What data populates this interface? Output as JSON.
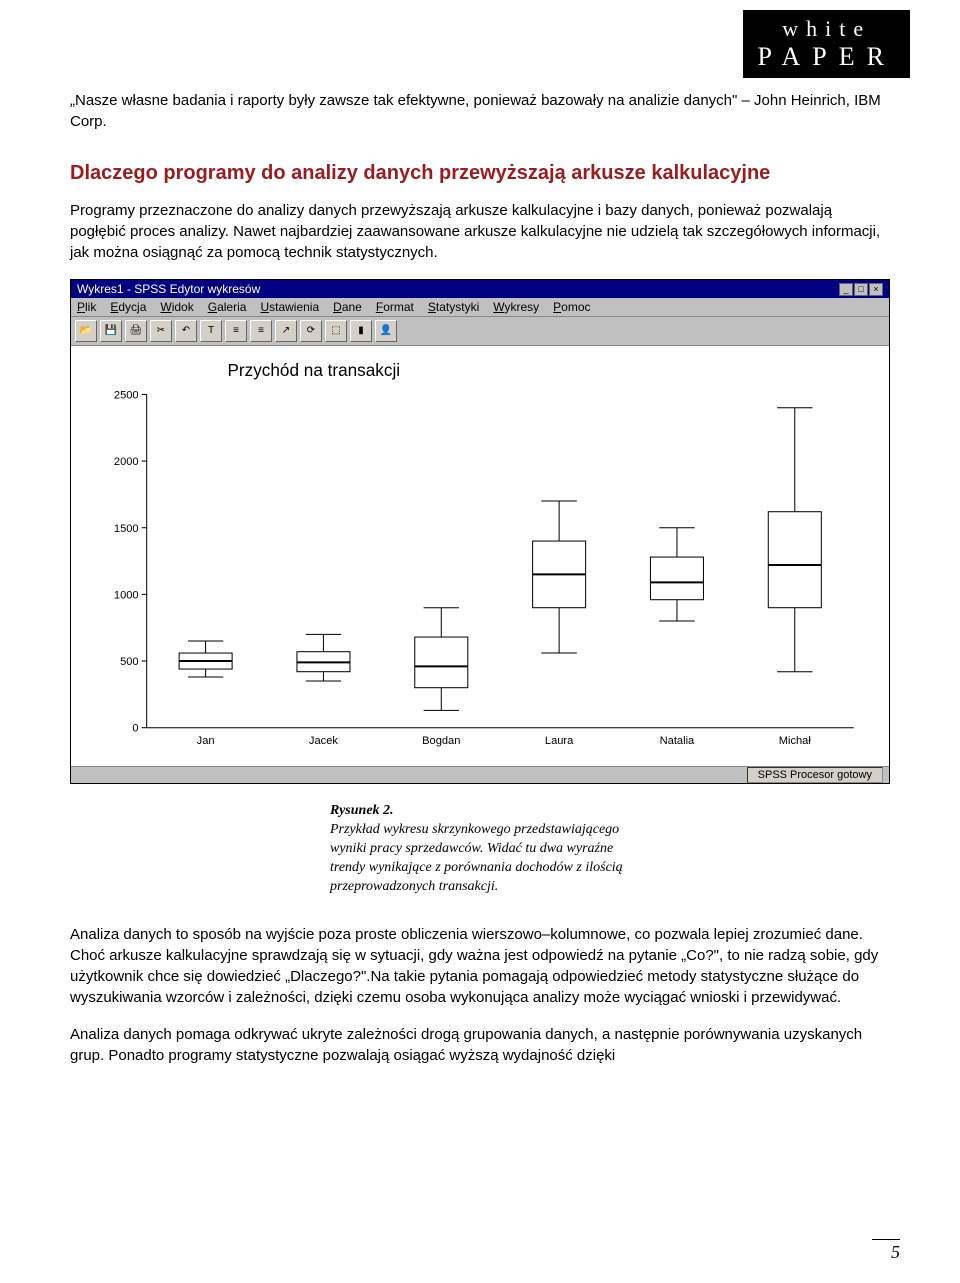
{
  "logo": {
    "line1": "white",
    "line2": "PAPER"
  },
  "quote": "„Nasze własne badania i raporty były zawsze tak efektywne, ponieważ bazowały na analizie danych\" – John Heinrich, IBM Corp.",
  "section_title_color": "#9b1b1e",
  "section_title": "Dlaczego programy do analizy danych przewyższają arkusze kalkulacyjne",
  "para1": "Programy przeznaczone do analizy danych przewyższają arkusze kalkulacyjne i bazy danych, ponieważ pozwalają pogłębić proces analizy. Nawet najbardziej zaawansowane arkusze kalkulacyjne nie udzielą tak szczegółowych informacji, jak można osiągnąć za pomocą technik statystycznych.",
  "window": {
    "title": "Wykres1 - SPSS Edytor wykresów",
    "menu": [
      "Plik",
      "Edycja",
      "Widok",
      "Galeria",
      "Ustawienia",
      "Dane",
      "Format",
      "Statystyki",
      "Wykresy",
      "Pomoc"
    ],
    "toolbar_icons": [
      "open-icon",
      "save-icon",
      "print-icon",
      "cut-icon",
      "undo-icon",
      "text-icon",
      "align-icon",
      "align-icon",
      "arrow-icon",
      "spin-icon",
      "select-icon",
      "bar-icon",
      "person-icon"
    ],
    "status": "SPSS Procesor gotowy"
  },
  "chart": {
    "type": "boxplot",
    "title": "Przychód na transakcji",
    "title_fontsize": 17,
    "ylim": [
      0,
      2500
    ],
    "ytick_step": 500,
    "yticks": [
      0,
      500,
      1000,
      1500,
      2000,
      2500
    ],
    "categories": [
      "Jan",
      "Jacek",
      "Bogdan",
      "Laura",
      "Natalia",
      "Michał"
    ],
    "boxes": [
      {
        "min": 380,
        "q1": 440,
        "median": 500,
        "q3": 560,
        "max": 650
      },
      {
        "min": 350,
        "q1": 420,
        "median": 490,
        "q3": 570,
        "max": 700
      },
      {
        "min": 130,
        "q1": 300,
        "median": 460,
        "q3": 680,
        "max": 900
      },
      {
        "min": 560,
        "q1": 900,
        "median": 1150,
        "q3": 1400,
        "max": 1700
      },
      {
        "min": 800,
        "q1": 960,
        "median": 1090,
        "q3": 1280,
        "max": 1500
      },
      {
        "min": 420,
        "q1": 900,
        "median": 1220,
        "q3": 1620,
        "max": 2400
      }
    ],
    "box_fill": "#ffffff",
    "box_stroke": "#000000",
    "background_color": "#ffffff",
    "label_fontsize": 11
  },
  "caption_title": "Rysunek 2.",
  "caption_body": "Przykład wykresu skrzynkowego przedstawiającego wyniki pracy sprzedawców. Widać tu dwa wyraźne trendy wynikające z porównania dochodów z ilością przeprowadzonych transakcji.",
  "para2": "Analiza danych to sposób na wyjście poza proste obliczenia wierszowo–kolumnowe, co pozwala lepiej zrozumieć dane. Choć arkusze kalkulacyjne sprawdzają się w sytuacji, gdy ważna jest odpowiedź na pytanie „Co?\", to nie radzą sobie, gdy użytkownik chce się dowiedzieć „Dlaczego?\".Na takie pytania pomagają odpowiedzieć metody statystyczne służące do wyszukiwania wzorców i zależności, dzięki czemu osoba wykonująca analizy może wyciągać wnioski i przewidywać.",
  "para3": "Analiza danych pomaga odkrywać ukryte zależności drogą grupowania danych, a następnie porównywania uzyskanych grup. Ponadto programy statystyczne pozwalają osiągać wyższą wydajność dzięki",
  "page_number": "5"
}
